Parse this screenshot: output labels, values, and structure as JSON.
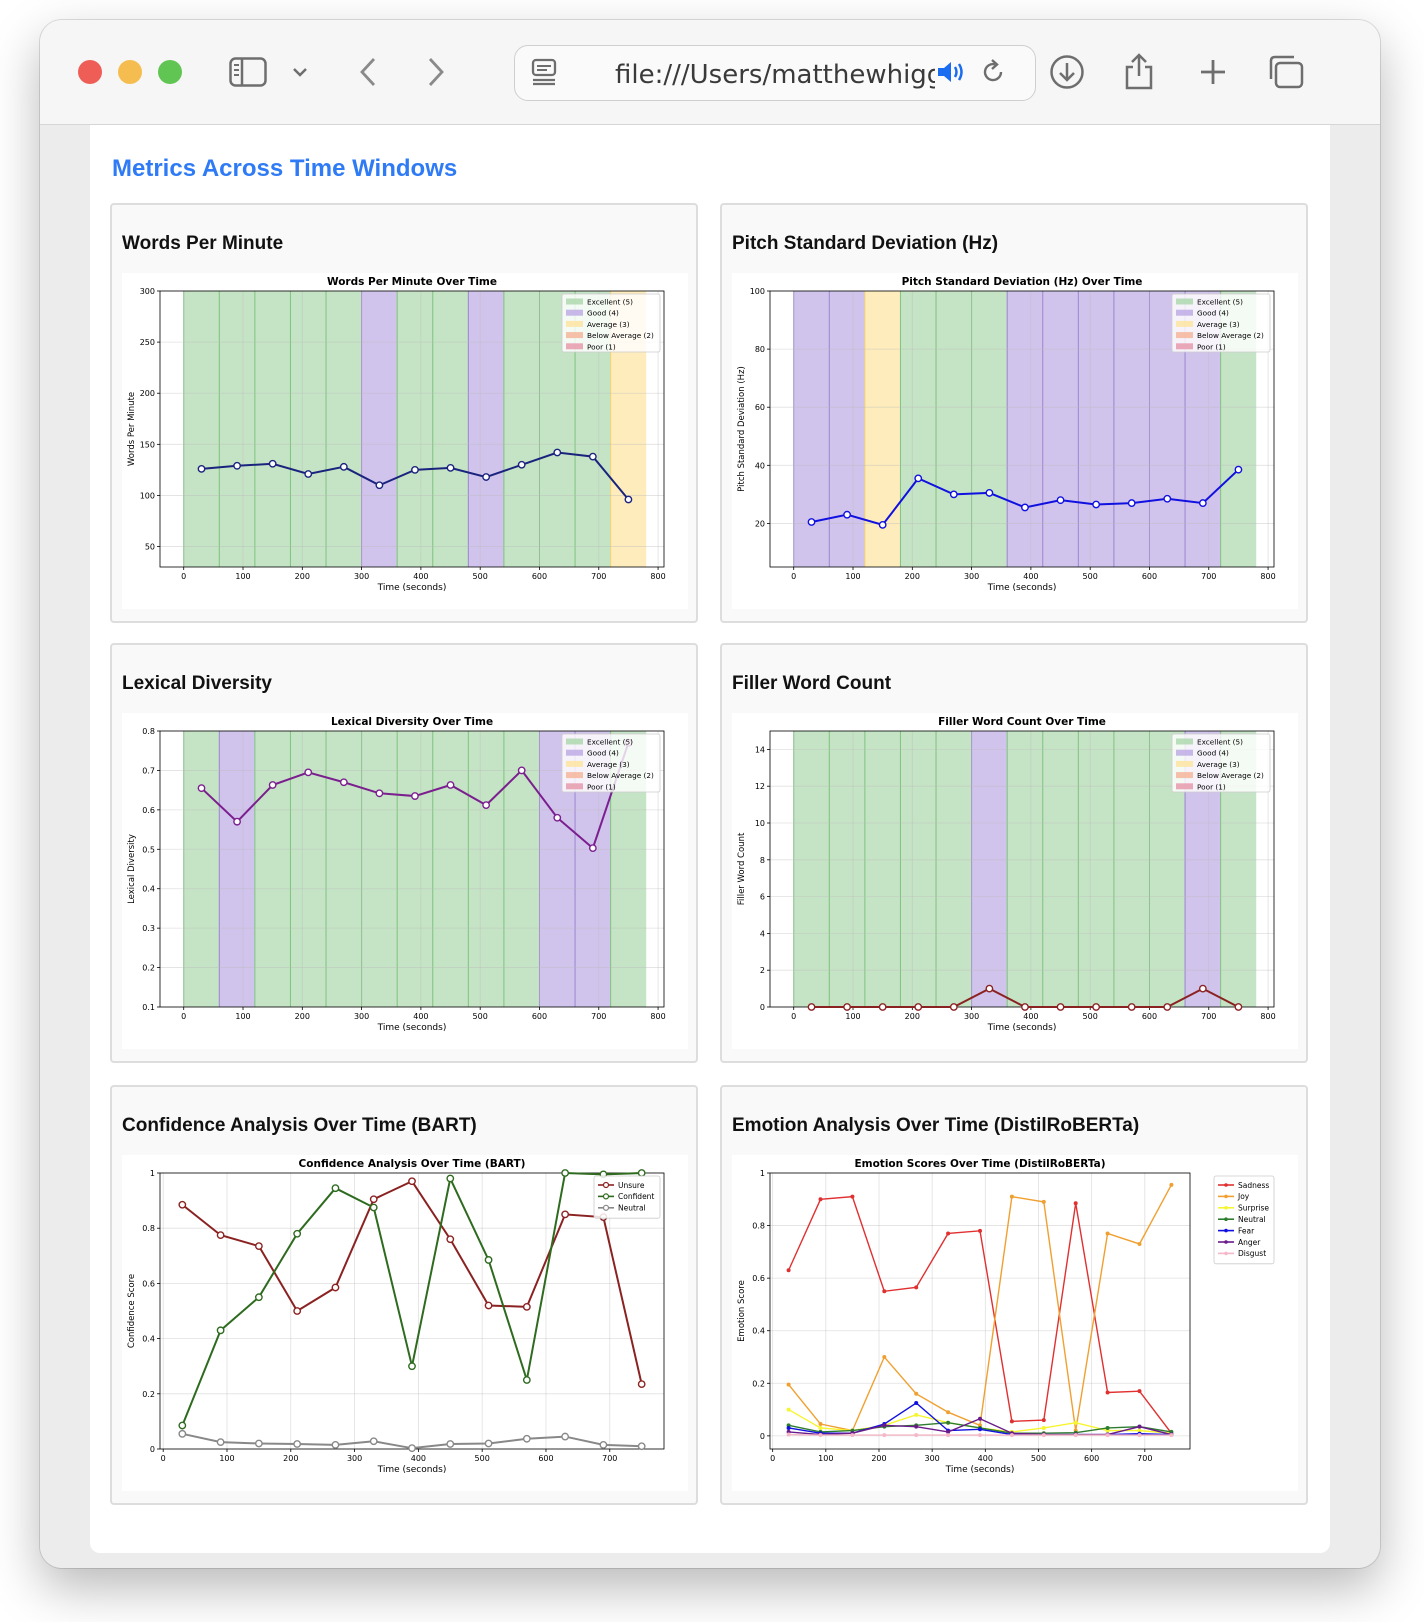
{
  "browser": {
    "url": "file:///Users/matthewhiggi",
    "icons": [
      "close-light",
      "minimize-light",
      "zoom-light",
      "sidebar-icon",
      "chevron-down-icon",
      "back-icon",
      "forward-icon",
      "reader-icon",
      "speaker-icon",
      "reload-icon",
      "download-icon",
      "share-icon",
      "new-tab-icon",
      "tabs-overview-icon"
    ]
  },
  "page": {
    "title": "Metrics Across Time Windows"
  },
  "cards": [
    {
      "title": "Words Per Minute"
    },
    {
      "title": "Pitch Standard Deviation (Hz)"
    },
    {
      "title": "Lexical Diversity"
    },
    {
      "title": "Filler Word Count"
    },
    {
      "title": "Confidence Analysis Over Time (BART)"
    },
    {
      "title": "Emotion Analysis Over Time (DistilRoBERTa)"
    }
  ],
  "colors": {
    "accent": "#2f7bf5",
    "excellent": "#b2dab2",
    "good": "#c2b0e6",
    "average": "#fde6a6",
    "below_average": "#f5b9a0",
    "poor": "#e8a0b0"
  },
  "chart_data": [
    {
      "type": "line",
      "title": "Words Per Minute Over Time",
      "xlabel": "Time (seconds)",
      "ylabel": "Words Per Minute",
      "xlim": [
        -40,
        810
      ],
      "ylim": [
        30,
        300
      ],
      "xticks": [
        0,
        100,
        200,
        300,
        400,
        500,
        600,
        700,
        800
      ],
      "yticks": [
        50,
        100,
        150,
        200,
        250,
        300
      ],
      "band_edges": [
        0,
        60,
        120,
        180,
        240,
        300,
        360,
        420,
        480,
        540,
        600,
        660,
        720,
        780
      ],
      "band_ratings": [
        "excellent",
        "excellent",
        "excellent",
        "excellent",
        "excellent",
        "good",
        "excellent",
        "excellent",
        "good",
        "excellent",
        "excellent",
        "excellent",
        "average"
      ],
      "legend": [
        "Excellent (5)",
        "Good (4)",
        "Average (3)",
        "Below Average (2)",
        "Poor (1)"
      ],
      "legend_position": "top-right",
      "grid": true,
      "series": [
        {
          "color": "#1a237e",
          "x": [
            30,
            90,
            150,
            210,
            270,
            330,
            390,
            450,
            510,
            570,
            630,
            690,
            750
          ],
          "y": [
            126,
            129,
            131,
            121,
            128,
            110,
            125,
            127,
            118,
            130,
            142,
            138,
            96
          ]
        }
      ]
    },
    {
      "type": "line",
      "title": "Pitch Standard Deviation (Hz) Over Time",
      "xlabel": "Time (seconds)",
      "ylabel": "Pitch Standard Deviation (Hz)",
      "xlim": [
        -40,
        810
      ],
      "ylim": [
        5,
        100
      ],
      "xticks": [
        0,
        100,
        200,
        300,
        400,
        500,
        600,
        700,
        800
      ],
      "yticks": [
        20,
        40,
        60,
        80,
        100
      ],
      "band_edges": [
        0,
        60,
        120,
        180,
        240,
        300,
        360,
        420,
        480,
        540,
        600,
        660,
        720,
        780
      ],
      "band_ratings": [
        "good",
        "good",
        "average",
        "excellent",
        "excellent",
        "excellent",
        "good",
        "good",
        "good",
        "good",
        "good",
        "good",
        "excellent"
      ],
      "legend": [
        "Excellent (5)",
        "Good (4)",
        "Average (3)",
        "Below Average (2)",
        "Poor (1)"
      ],
      "legend_position": "top-right",
      "grid": true,
      "series": [
        {
          "color": "#1010e0",
          "x": [
            30,
            90,
            150,
            210,
            270,
            330,
            390,
            450,
            510,
            570,
            630,
            690,
            750
          ],
          "y": [
            20.5,
            23,
            19.5,
            35.5,
            30,
            30.5,
            25.5,
            28,
            26.5,
            27,
            28.5,
            27,
            38.5
          ]
        }
      ]
    },
    {
      "type": "line",
      "title": "Lexical Diversity Over Time",
      "xlabel": "Time (seconds)",
      "ylabel": "Lexical Diversity",
      "xlim": [
        -40,
        810
      ],
      "ylim": [
        0.1,
        0.8
      ],
      "xticks": [
        0,
        100,
        200,
        300,
        400,
        500,
        600,
        700,
        800
      ],
      "yticks": [
        0.1,
        0.2,
        0.3,
        0.4,
        0.5,
        0.6,
        0.7,
        0.8
      ],
      "band_edges": [
        0,
        60,
        120,
        180,
        240,
        300,
        360,
        420,
        480,
        540,
        600,
        660,
        720,
        780
      ],
      "band_ratings": [
        "excellent",
        "good",
        "excellent",
        "excellent",
        "excellent",
        "excellent",
        "excellent",
        "excellent",
        "excellent",
        "excellent",
        "good",
        "good",
        "excellent"
      ],
      "legend": [
        "Excellent (5)",
        "Good (4)",
        "Average (3)",
        "Below Average (2)",
        "Poor (1)"
      ],
      "legend_position": "top-right",
      "grid": true,
      "series": [
        {
          "color": "#7b1f8f",
          "x": [
            30,
            90,
            150,
            210,
            270,
            330,
            390,
            450,
            510,
            570,
            630,
            690,
            750
          ],
          "y": [
            0.655,
            0.57,
            0.663,
            0.695,
            0.67,
            0.642,
            0.635,
            0.663,
            0.612,
            0.7,
            0.58,
            0.503,
            0.77
          ]
        }
      ]
    },
    {
      "type": "line",
      "title": "Filler Word Count Over Time",
      "xlabel": "Time (seconds)",
      "ylabel": "Filler Word Count",
      "xlim": [
        -40,
        810
      ],
      "ylim": [
        0,
        15
      ],
      "xticks": [
        0,
        100,
        200,
        300,
        400,
        500,
        600,
        700,
        800
      ],
      "yticks": [
        0,
        2,
        4,
        6,
        8,
        10,
        12,
        14
      ],
      "band_edges": [
        0,
        60,
        120,
        180,
        240,
        300,
        360,
        420,
        480,
        540,
        600,
        660,
        720,
        780
      ],
      "band_ratings": [
        "excellent",
        "excellent",
        "excellent",
        "excellent",
        "excellent",
        "good",
        "excellent",
        "excellent",
        "excellent",
        "excellent",
        "excellent",
        "good",
        "excellent"
      ],
      "legend": [
        "Excellent (5)",
        "Good (4)",
        "Average (3)",
        "Below Average (2)",
        "Poor (1)"
      ],
      "legend_position": "top-right",
      "grid": true,
      "series": [
        {
          "color": "#8b2222",
          "x": [
            30,
            90,
            150,
            210,
            270,
            330,
            390,
            450,
            510,
            570,
            630,
            690,
            750
          ],
          "y": [
            0,
            0,
            0,
            0,
            0,
            1,
            0,
            0,
            0,
            0,
            0,
            1,
            0
          ]
        }
      ]
    },
    {
      "type": "line",
      "title": "Confidence Analysis Over Time (BART)",
      "xlabel": "Time (seconds)",
      "ylabel": "Confidence Score",
      "xlim": [
        -5,
        785
      ],
      "ylim": [
        0,
        1.0
      ],
      "xticks": [
        0,
        100,
        200,
        300,
        400,
        500,
        600,
        700
      ],
      "yticks": [
        0.0,
        0.2,
        0.4,
        0.6,
        0.8,
        1.0
      ],
      "legend_position": "top-right",
      "grid": true,
      "series": [
        {
          "name": "Unsure",
          "color": "#8b2222",
          "x": [
            30,
            90,
            150,
            210,
            270,
            330,
            390,
            450,
            510,
            570,
            630,
            690,
            750
          ],
          "y": [
            0.885,
            0.775,
            0.735,
            0.5,
            0.585,
            0.905,
            0.97,
            0.76,
            0.52,
            0.515,
            0.85,
            0.84,
            0.235
          ]
        },
        {
          "name": "Confident",
          "color": "#2e6b1f",
          "x": [
            30,
            90,
            150,
            210,
            270,
            330,
            390,
            450,
            510,
            570,
            630,
            690,
            750
          ],
          "y": [
            0.085,
            0.43,
            0.55,
            0.78,
            0.945,
            0.875,
            0.3,
            0.98,
            0.685,
            0.25,
            1.0,
            0.995,
            1.0
          ]
        },
        {
          "name": "Neutral",
          "color": "#888888",
          "x": [
            30,
            90,
            150,
            210,
            270,
            330,
            390,
            450,
            510,
            570,
            630,
            690,
            750
          ],
          "y": [
            0.055,
            0.025,
            0.02,
            0.018,
            0.015,
            0.028,
            0.003,
            0.018,
            0.02,
            0.037,
            0.045,
            0.015,
            0.01
          ]
        }
      ]
    },
    {
      "type": "line",
      "title": "Emotion Scores Over Time (DistilRoBERTa)",
      "xlabel": "Time (seconds)",
      "ylabel": "Emotion Score",
      "xlim": [
        -5,
        785
      ],
      "ylim": [
        -0.05,
        1.0
      ],
      "xticks": [
        0,
        100,
        200,
        300,
        400,
        500,
        600,
        700
      ],
      "yticks": [
        0.0,
        0.2,
        0.4,
        0.6,
        0.8,
        1.0
      ],
      "legend_position": "outside right",
      "grid": true,
      "series": [
        {
          "name": "Sadness",
          "color": "#e03030",
          "x": [
            30,
            90,
            150,
            210,
            270,
            330,
            390,
            450,
            510,
            570,
            630,
            690,
            750
          ],
          "y": [
            0.63,
            0.9,
            0.91,
            0.55,
            0.565,
            0.77,
            0.78,
            0.055,
            0.06,
            0.885,
            0.165,
            0.17,
            0.01
          ]
        },
        {
          "name": "Joy",
          "color": "#f0a030",
          "x": [
            30,
            90,
            150,
            210,
            270,
            330,
            390,
            450,
            510,
            570,
            630,
            690,
            750
          ],
          "y": [
            0.195,
            0.045,
            0.02,
            0.3,
            0.16,
            0.09,
            0.04,
            0.91,
            0.89,
            0.02,
            0.77,
            0.73,
            0.955
          ]
        },
        {
          "name": "Surprise",
          "color": "#f5f530",
          "x": [
            30,
            90,
            150,
            210,
            270,
            330,
            390,
            450,
            510,
            570,
            630,
            690,
            750
          ],
          "y": [
            0.1,
            0.03,
            0.02,
            0.04,
            0.08,
            0.05,
            0.03,
            0.015,
            0.03,
            0.05,
            0.02,
            0.02,
            0.01
          ]
        },
        {
          "name": "Neutral",
          "color": "#2e7d2e",
          "x": [
            30,
            90,
            150,
            210,
            270,
            330,
            390,
            450,
            510,
            570,
            630,
            690,
            750
          ],
          "y": [
            0.04,
            0.015,
            0.02,
            0.035,
            0.04,
            0.05,
            0.03,
            0.01,
            0.01,
            0.012,
            0.03,
            0.035,
            0.015
          ]
        },
        {
          "name": "Fear",
          "color": "#1010e0",
          "x": [
            30,
            90,
            150,
            210,
            270,
            330,
            390,
            450,
            510,
            570,
            630,
            690,
            750
          ],
          "y": [
            0.03,
            0.01,
            0.01,
            0.045,
            0.125,
            0.02,
            0.025,
            0.005,
            0.005,
            0.005,
            0.005,
            0.008,
            0.005
          ]
        },
        {
          "name": "Anger",
          "color": "#6a1b8a",
          "x": [
            30,
            90,
            150,
            210,
            270,
            330,
            390,
            450,
            510,
            570,
            630,
            690,
            750
          ],
          "y": [
            0.015,
            0.005,
            0.01,
            0.04,
            0.035,
            0.015,
            0.065,
            0.01,
            0.005,
            0.005,
            0.005,
            0.035,
            0.005
          ]
        },
        {
          "name": "Disgust",
          "color": "#f5b8c8",
          "x": [
            30,
            90,
            150,
            210,
            270,
            330,
            390,
            450,
            510,
            570,
            630,
            690,
            750
          ],
          "y": [
            0.005,
            0.003,
            0.003,
            0.003,
            0.003,
            0.003,
            0.003,
            0.003,
            0.003,
            0.003,
            0.003,
            0.003,
            0.003
          ]
        }
      ]
    }
  ]
}
